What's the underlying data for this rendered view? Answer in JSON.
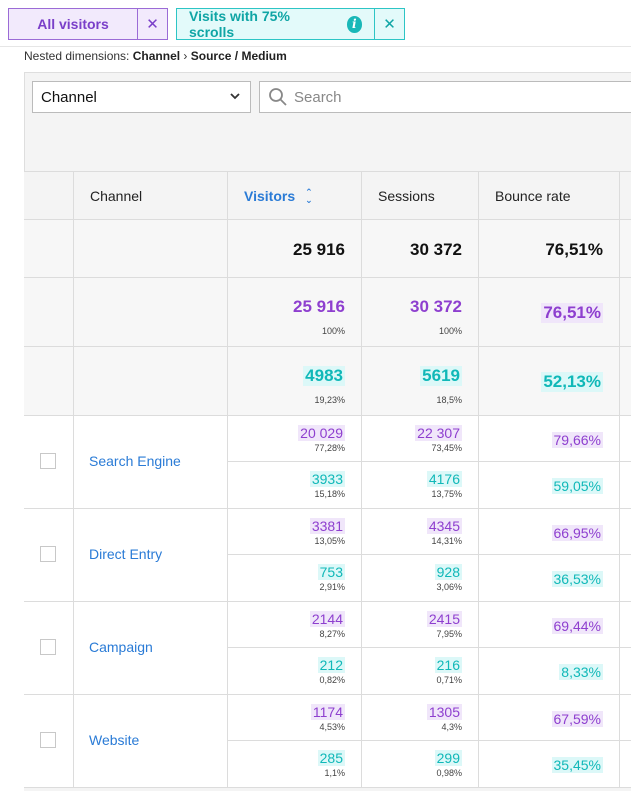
{
  "segments": [
    {
      "label": "All visitors",
      "close": "✕"
    },
    {
      "label": "Visits with 75% scrolls",
      "info": "i",
      "close": "✕"
    }
  ],
  "nested": {
    "prefix": "Nested dimensions:",
    "dim1": "Channel",
    "sep": "›",
    "dim2": "Source / Medium"
  },
  "dimension_select": {
    "value": "Channel",
    "chevron": "⌄"
  },
  "search": {
    "placeholder": "Search"
  },
  "columns": {
    "channel": "Channel",
    "visitors": "Visitors",
    "sessions": "Sessions",
    "bounce_rate": "Bounce rate"
  },
  "totals": {
    "visitors": "25 916",
    "sessions": "30 372",
    "bounce_rate": "76,51%"
  },
  "segment_totals": [
    {
      "visitors": "25 916",
      "visitors_pct": "100%",
      "sessions": "30 372",
      "sessions_pct": "100%",
      "bounce_rate": "76,51%"
    },
    {
      "visitors": "4983",
      "visitors_pct": "19,23%",
      "sessions": "5619",
      "sessions_pct": "18,5%",
      "bounce_rate": "52,13%"
    }
  ],
  "rows": [
    {
      "channel": "Search Engine",
      "seg1": {
        "visitors": "20 029",
        "visitors_pct": "77,28%",
        "sessions": "22 307",
        "sessions_pct": "73,45%",
        "bounce_rate": "79,66%"
      },
      "seg2": {
        "visitors": "3933",
        "visitors_pct": "15,18%",
        "sessions": "4176",
        "sessions_pct": "13,75%",
        "bounce_rate": "59,05%"
      }
    },
    {
      "channel": "Direct Entry",
      "seg1": {
        "visitors": "3381",
        "visitors_pct": "13,05%",
        "sessions": "4345",
        "sessions_pct": "14,31%",
        "bounce_rate": "66,95%"
      },
      "seg2": {
        "visitors": "753",
        "visitors_pct": "2,91%",
        "sessions": "928",
        "sessions_pct": "3,06%",
        "bounce_rate": "36,53%"
      }
    },
    {
      "channel": "Campaign",
      "seg1": {
        "visitors": "2144",
        "visitors_pct": "8,27%",
        "sessions": "2415",
        "sessions_pct": "7,95%",
        "bounce_rate": "69,44%"
      },
      "seg2": {
        "visitors": "212",
        "visitors_pct": "0,82%",
        "sessions": "216",
        "sessions_pct": "0,71%",
        "bounce_rate": "8,33%"
      }
    },
    {
      "channel": "Website",
      "seg1": {
        "visitors": "1174",
        "visitors_pct": "4,53%",
        "sessions": "1305",
        "sessions_pct": "4,3%",
        "bounce_rate": "67,59%"
      },
      "seg2": {
        "visitors": "285",
        "visitors_pct": "1,1%",
        "sessions": "299",
        "sessions_pct": "0,98%",
        "bounce_rate": "35,45%"
      }
    }
  ],
  "colors": {
    "segment1": "#8e3fcf",
    "segment2": "#10b8b8",
    "link": "#2a7bd6"
  }
}
